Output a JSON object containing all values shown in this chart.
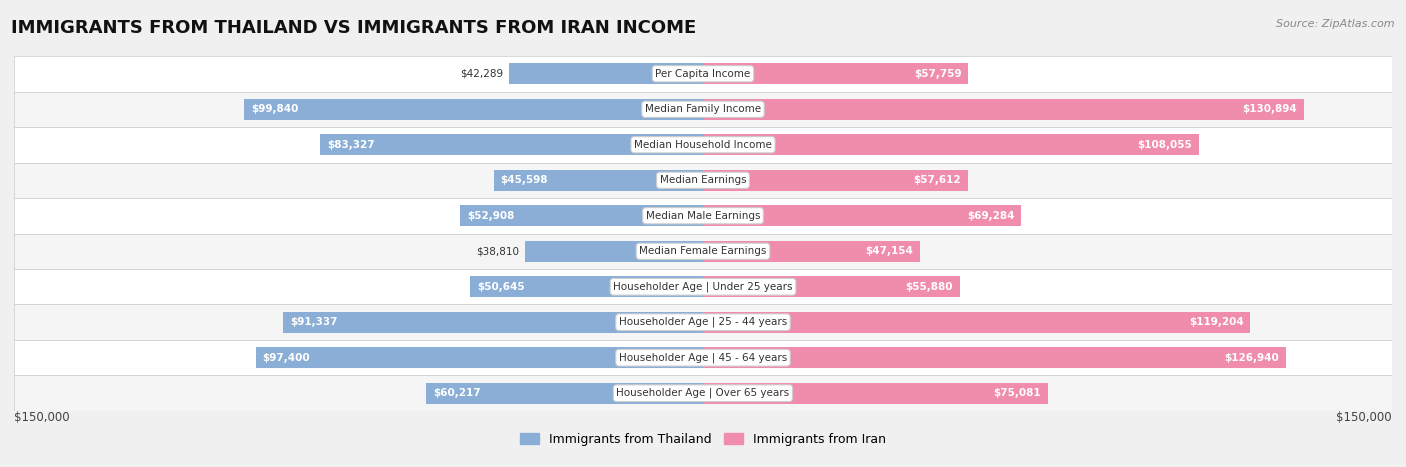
{
  "title": "IMMIGRANTS FROM THAILAND VS IMMIGRANTS FROM IRAN INCOME",
  "source": "Source: ZipAtlas.com",
  "categories": [
    "Per Capita Income",
    "Median Family Income",
    "Median Household Income",
    "Median Earnings",
    "Median Male Earnings",
    "Median Female Earnings",
    "Householder Age | Under 25 years",
    "Householder Age | 25 - 44 years",
    "Householder Age | 45 - 64 years",
    "Householder Age | Over 65 years"
  ],
  "thailand_values": [
    42289,
    99840,
    83327,
    45598,
    52908,
    38810,
    50645,
    91337,
    97400,
    60217
  ],
  "iran_values": [
    57759,
    130894,
    108055,
    57612,
    69284,
    47154,
    55880,
    119204,
    126940,
    75081
  ],
  "thailand_color": "#8aaed6",
  "iran_color": "#f08cac",
  "max_val": 150000,
  "background_color": "#f0f0f0",
  "row_bg_even": "#ffffff",
  "row_bg_odd": "#f5f5f5",
  "title_fontsize": 13,
  "bar_height": 0.58,
  "xlabel_left": "$150,000",
  "xlabel_right": "$150,000",
  "thailand_inside_threshold": 0.3,
  "iran_inside_threshold": 0.3
}
